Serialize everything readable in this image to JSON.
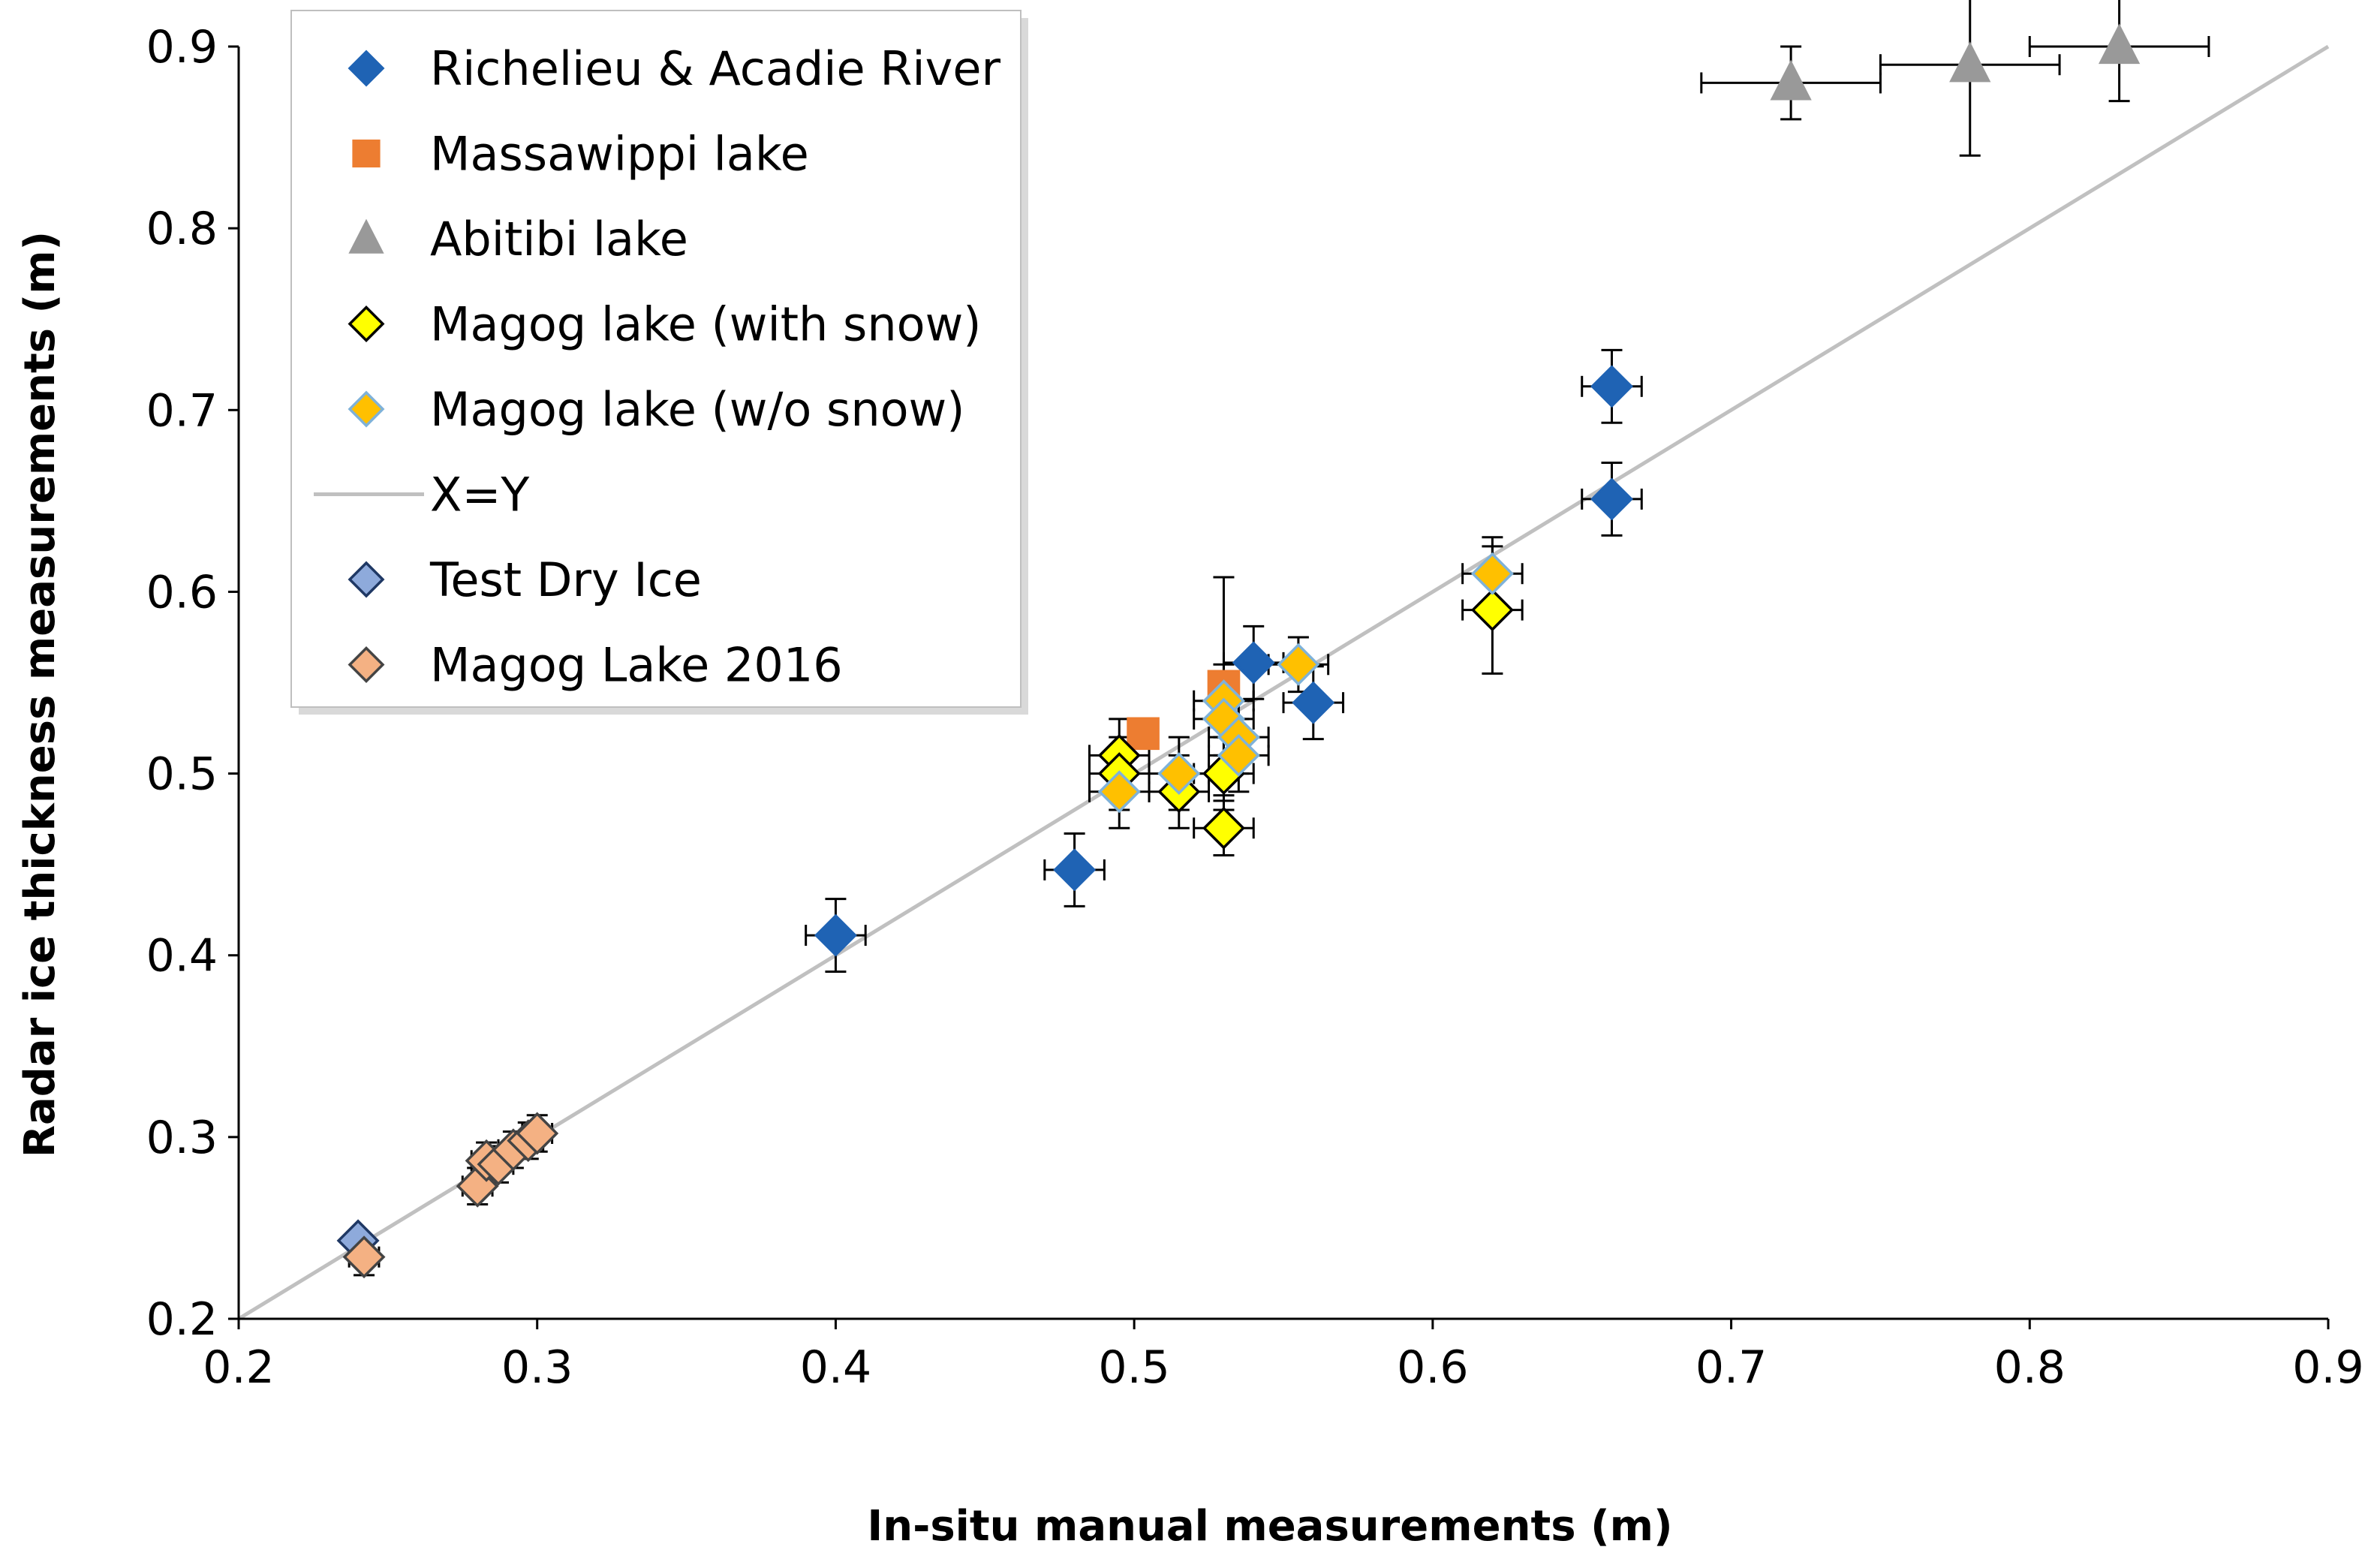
{
  "chart_data": {
    "type": "scatter",
    "title": "",
    "xlabel": "In-situ manual measurements (m)",
    "ylabel": "Radar ice thickness measurements (m)",
    "xlim": [
      0.2,
      0.9
    ],
    "ylim": [
      0.2,
      0.9
    ],
    "xticks": [
      "0.2",
      "0.3",
      "0.4",
      "0.5",
      "0.6",
      "0.7",
      "0.8",
      "0.9"
    ],
    "yticks": [
      "0.2",
      "0.3",
      "0.4",
      "0.5",
      "0.6",
      "0.7",
      "0.8",
      "0.9"
    ],
    "grid": false,
    "legend_position": "top-left",
    "reference_line": {
      "name": "X=Y",
      "color": "#c0c0c0",
      "from": [
        0.2,
        0.2
      ],
      "to": [
        0.9,
        0.9
      ]
    },
    "series": [
      {
        "name": "Richelieu & Acadie River",
        "marker": "diamond",
        "fill": "#1f63b4",
        "stroke": "#1f63b4",
        "points": [
          {
            "x": 0.4,
            "y": 0.411,
            "xerr": 0.01,
            "yerr": 0.02
          },
          {
            "x": 0.48,
            "y": 0.447,
            "xerr": 0.01,
            "yerr": 0.02
          },
          {
            "x": 0.54,
            "y": 0.561,
            "xerr": 0.01,
            "yerr": 0.02
          },
          {
            "x": 0.56,
            "y": 0.539,
            "xerr": 0.01,
            "yerr": 0.02
          },
          {
            "x": 0.66,
            "y": 0.651,
            "xerr": 0.01,
            "yerr": 0.02
          },
          {
            "x": 0.66,
            "y": 0.713,
            "xerr": 0.01,
            "yerr": 0.02
          }
        ]
      },
      {
        "name": "Massawippi lake",
        "marker": "square",
        "fill": "#ed7d31",
        "stroke": "#ed7d31",
        "points": [
          {
            "x": 0.503,
            "y": 0.522,
            "xerr": 0.0,
            "yerr": 0.0
          },
          {
            "x": 0.53,
            "y": 0.548,
            "xerr": 0.0,
            "yerr": 0.06
          }
        ]
      },
      {
        "name": "Abitibi lake",
        "marker": "triangle",
        "fill": "#999999",
        "stroke": "#999999",
        "points": [
          {
            "x": 0.72,
            "y": 0.88,
            "xerr": 0.03,
            "yerr": 0.02
          },
          {
            "x": 0.78,
            "y": 0.89,
            "xerr": 0.03,
            "yerr": 0.05
          },
          {
            "x": 0.83,
            "y": 0.9,
            "xerr": 0.03,
            "yerr": 0.03
          }
        ]
      },
      {
        "name": "Magog lake (with snow)",
        "marker": "diamond",
        "fill": "#ffff00",
        "stroke": "#000000",
        "points": [
          {
            "x": 0.495,
            "y": 0.51,
            "xerr": 0.01,
            "yerr": 0.02
          },
          {
            "x": 0.495,
            "y": 0.5,
            "xerr": 0.01,
            "yerr": 0.02
          },
          {
            "x": 0.515,
            "y": 0.49,
            "xerr": 0.01,
            "yerr": 0.02
          },
          {
            "x": 0.53,
            "y": 0.5,
            "xerr": 0.01,
            "yerr": 0.02
          },
          {
            "x": 0.53,
            "y": 0.47,
            "xerr": 0.01,
            "yerr": 0.015
          },
          {
            "x": 0.62,
            "y": 0.59,
            "xerr": 0.01,
            "yerr": 0.035
          }
        ]
      },
      {
        "name": "Magog lake (w/o snow)",
        "marker": "diamond",
        "fill": "#ffc000",
        "stroke": "#7fb2d9",
        "points": [
          {
            "x": 0.495,
            "y": 0.49,
            "xerr": 0.01,
            "yerr": 0.02
          },
          {
            "x": 0.515,
            "y": 0.5,
            "xerr": 0.01,
            "yerr": 0.02
          },
          {
            "x": 0.53,
            "y": 0.54,
            "xerr": 0.01,
            "yerr": 0.02
          },
          {
            "x": 0.53,
            "y": 0.53,
            "xerr": 0.01,
            "yerr": 0.02
          },
          {
            "x": 0.535,
            "y": 0.52,
            "xerr": 0.01,
            "yerr": 0.02
          },
          {
            "x": 0.535,
            "y": 0.51,
            "xerr": 0.01,
            "yerr": 0.02
          },
          {
            "x": 0.555,
            "y": 0.56,
            "xerr": 0.01,
            "yerr": 0.015
          },
          {
            "x": 0.62,
            "y": 0.61,
            "xerr": 0.01,
            "yerr": 0.02
          }
        ]
      },
      {
        "name": "Test Dry Ice",
        "marker": "diamond",
        "fill": "#8eaadb",
        "stroke": "#1f3864",
        "points": [
          {
            "x": 0.24,
            "y": 0.243,
            "xerr": 0.0,
            "yerr": 0.0
          }
        ]
      },
      {
        "name": "Magog Lake 2016",
        "marker": "diamond",
        "fill": "#f4b183",
        "stroke": "#444444",
        "points": [
          {
            "x": 0.242,
            "y": 0.234,
            "xerr": 0.005,
            "yerr": 0.01
          },
          {
            "x": 0.28,
            "y": 0.273,
            "xerr": 0.005,
            "yerr": 0.01
          },
          {
            "x": 0.283,
            "y": 0.287,
            "xerr": 0.005,
            "yerr": 0.01
          },
          {
            "x": 0.287,
            "y": 0.285,
            "xerr": 0.005,
            "yerr": 0.01
          },
          {
            "x": 0.292,
            "y": 0.293,
            "xerr": 0.005,
            "yerr": 0.01
          },
          {
            "x": 0.297,
            "y": 0.298,
            "xerr": 0.005,
            "yerr": 0.01
          },
          {
            "x": 0.3,
            "y": 0.302,
            "xerr": 0.005,
            "yerr": 0.01
          }
        ]
      }
    ]
  }
}
